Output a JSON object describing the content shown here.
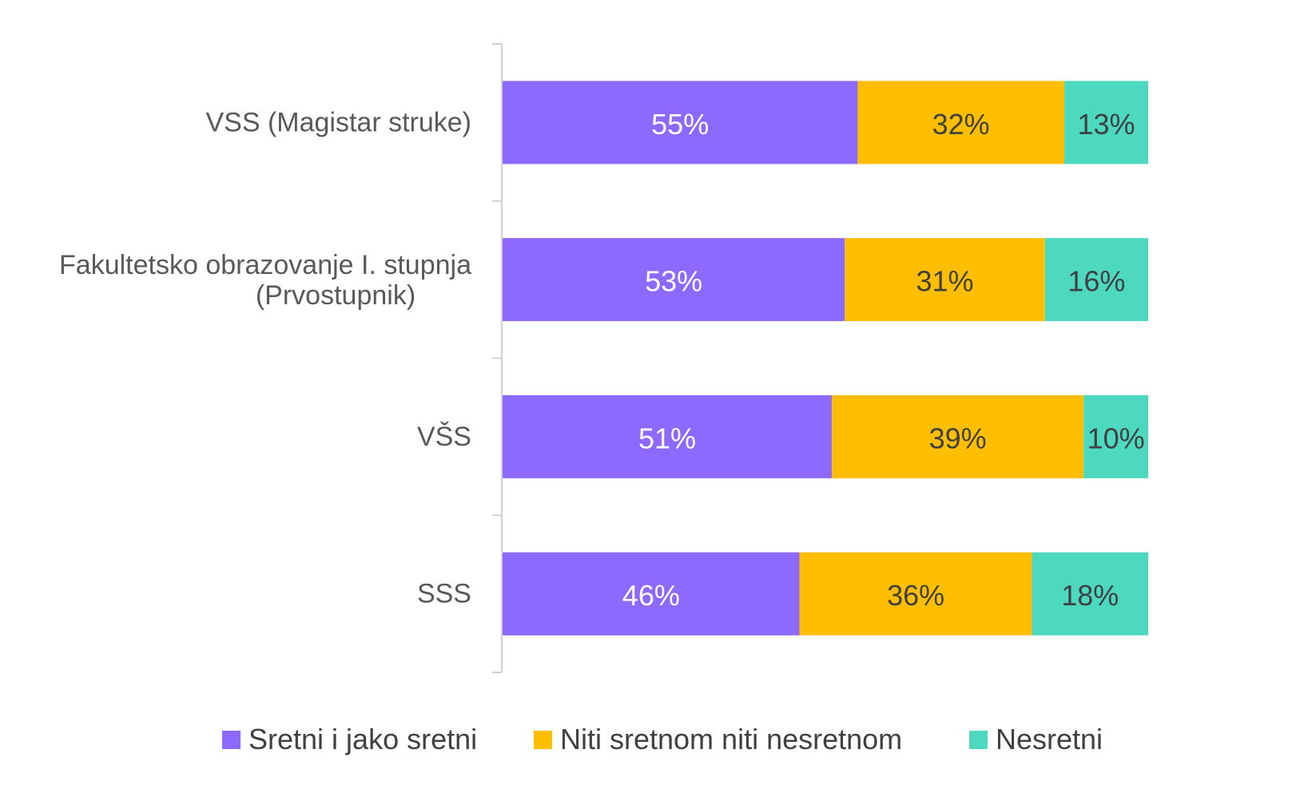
{
  "chart_data": {
    "type": "bar",
    "orientation": "horizontal",
    "stacked": true,
    "categories": [
      "VSS (Magistar struke)",
      "Fakultetsko obrazovanje I. stupnja (Prvostupnik)",
      "VŠS",
      "SSS"
    ],
    "series": [
      {
        "name": "Sretni i jako sretni",
        "color": "#8e69ff",
        "label_color": "#ffffff",
        "values": [
          55,
          53,
          51,
          46
        ]
      },
      {
        "name": "Niti sretnom niti nesretnom",
        "color": "#ffbf00",
        "label_color": "#404040",
        "values": [
          32,
          31,
          39,
          36
        ]
      },
      {
        "name": "Nesretni",
        "color": "#4dd9bf",
        "label_color": "#404040",
        "values": [
          13,
          16,
          10,
          18
        ]
      }
    ],
    "value_suffix": "%",
    "xlim": [
      0,
      100
    ],
    "grid": false,
    "legend": "bottom",
    "title": "",
    "xlabel": "",
    "ylabel": ""
  }
}
